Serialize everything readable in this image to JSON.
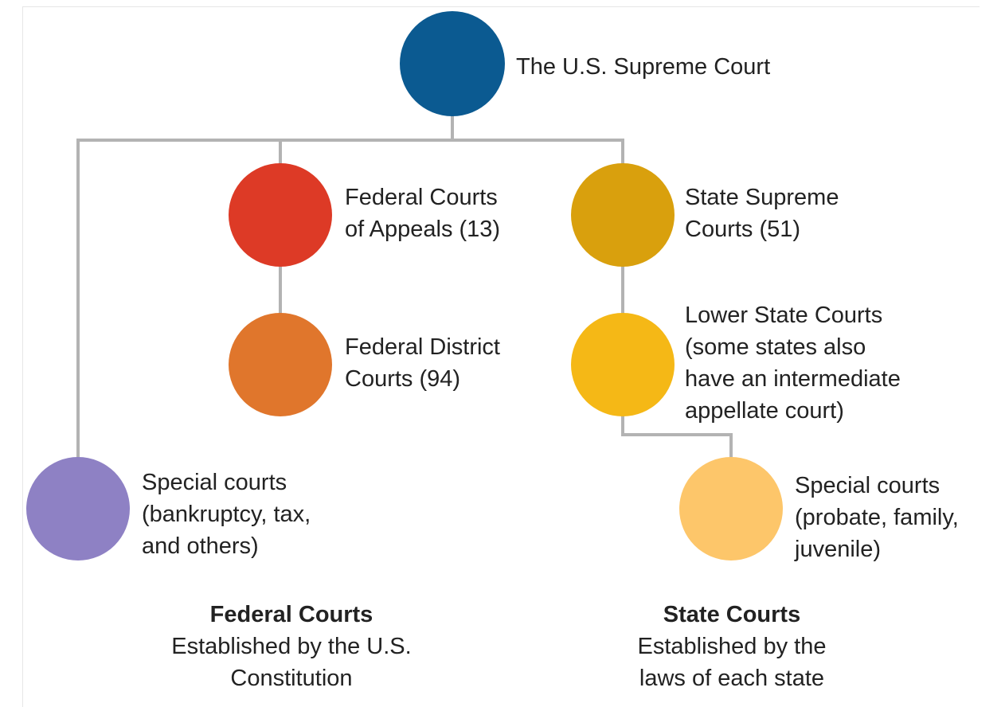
{
  "nodes": {
    "supreme_court": {
      "lines": [
        "The U.S. Supreme Court"
      ],
      "color": "#0b5a91"
    },
    "federal_appeals": {
      "lines": [
        "Federal Courts",
        "of Appeals (13)"
      ],
      "color": "#dd3a26"
    },
    "state_supreme": {
      "lines": [
        "State Supreme",
        "Courts (51)"
      ],
      "color": "#d9a00d"
    },
    "federal_district": {
      "lines": [
        "Federal District",
        "Courts (94)"
      ],
      "color": "#e0762c"
    },
    "lower_state": {
      "lines": [
        "Lower State Courts",
        "(some states also",
        "have an intermediate",
        "appellate court)"
      ],
      "color": "#f5b816"
    },
    "federal_special": {
      "lines": [
        "Special courts",
        "(bankruptcy, tax,",
        "and others)"
      ],
      "color": "#8e81c4"
    },
    "state_special": {
      "lines": [
        "Special courts",
        "(probate, family,",
        "juvenile)"
      ],
      "color": "#fdc66a"
    }
  },
  "captions": {
    "federal": {
      "title": "Federal Courts",
      "lines": [
        "Established by the U.S.",
        "Constitution"
      ]
    },
    "state": {
      "title": "State Courts",
      "lines": [
        "Established by the",
        "laws of each state"
      ]
    }
  },
  "connector_color": "#b3b3b3"
}
